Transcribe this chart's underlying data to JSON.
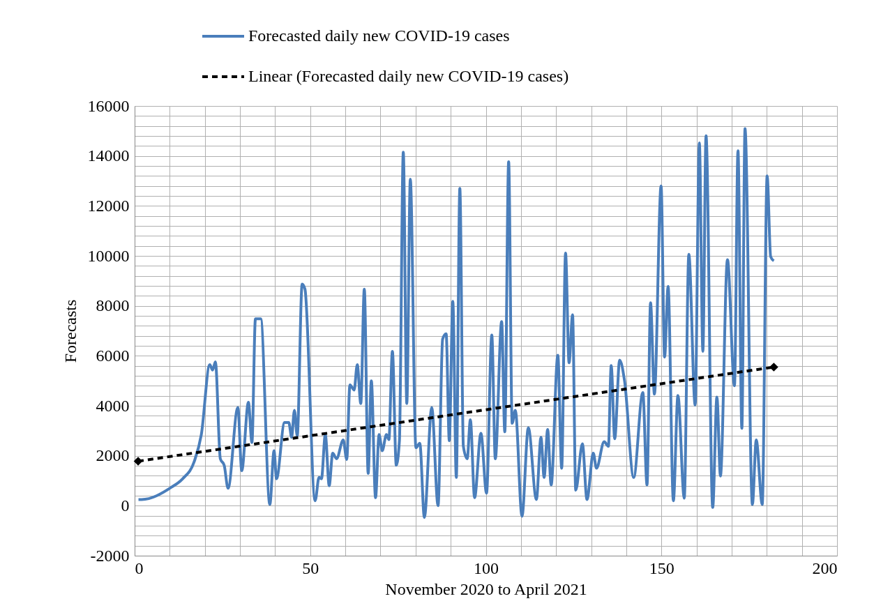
{
  "chart_data": {
    "type": "line",
    "xlabel": "November 2020 to April 2021",
    "ylabel": "Forecasts",
    "legend": "top",
    "grid": true,
    "xlim": [
      0,
      200
    ],
    "ylim": [
      -2000,
      16000
    ],
    "xticks": [
      0,
      {
        "value": 10,
        "label": null
      },
      {
        "value": 20,
        "label": null
      },
      {
        "value": 30,
        "label": null
      },
      {
        "value": 40,
        "label": null
      },
      50,
      {
        "value": 60,
        "label": null
      },
      {
        "value": 70,
        "label": null
      },
      {
        "value": 80,
        "label": null
      },
      {
        "value": 90,
        "label": null
      },
      100,
      {
        "value": 110,
        "label": null
      },
      {
        "value": 120,
        "label": null
      },
      {
        "value": 130,
        "label": null
      },
      {
        "value": 140,
        "label": null
      },
      150,
      {
        "value": 160,
        "label": null
      },
      {
        "value": 170,
        "label": null
      },
      {
        "value": 180,
        "label": null
      },
      {
        "value": 190,
        "label": null
      },
      200
    ],
    "yticks": [
      -2000,
      {
        "value": -1600,
        "label": null
      },
      {
        "value": -1200,
        "label": null
      },
      {
        "value": -800,
        "label": null
      },
      {
        "value": -400,
        "label": null
      },
      0,
      {
        "value": 400,
        "label": null
      },
      {
        "value": 800,
        "label": null
      },
      {
        "value": 1200,
        "label": null
      },
      {
        "value": 1600,
        "label": null
      },
      2000,
      {
        "value": 2400,
        "label": null
      },
      {
        "value": 2800,
        "label": null
      },
      {
        "value": 3200,
        "label": null
      },
      {
        "value": 3600,
        "label": null
      },
      4000,
      {
        "value": 4400,
        "label": null
      },
      {
        "value": 4800,
        "label": null
      },
      {
        "value": 5200,
        "label": null
      },
      {
        "value": 5600,
        "label": null
      },
      6000,
      {
        "value": 6400,
        "label": null
      },
      {
        "value": 6800,
        "label": null
      },
      {
        "value": 7200,
        "label": null
      },
      {
        "value": 7600,
        "label": null
      },
      8000,
      {
        "value": 8400,
        "label": null
      },
      {
        "value": 8800,
        "label": null
      },
      {
        "value": 9200,
        "label": null
      },
      {
        "value": 9600,
        "label": null
      },
      10000,
      {
        "value": 10400,
        "label": null
      },
      {
        "value": 10800,
        "label": null
      },
      {
        "value": 11200,
        "label": null
      },
      {
        "value": 11600,
        "label": null
      },
      12000,
      {
        "value": 12400,
        "label": null
      },
      {
        "value": 12800,
        "label": null
      },
      {
        "value": 13200,
        "label": null
      },
      {
        "value": 13600,
        "label": null
      },
      14000,
      {
        "value": 14400,
        "label": null
      },
      {
        "value": 14800,
        "label": null
      },
      {
        "value": 15200,
        "label": null
      },
      {
        "value": 15600,
        "label": null
      },
      16000
    ],
    "series": [
      {
        "name": "Forecasted daily new COVID-19 cases",
        "type": "line",
        "color": "#4a7ebb",
        "line_style": "solid",
        "x": [
          1.1,
          2,
          10.6,
          13.7,
          17,
          19,
          21.4,
          22.2,
          23,
          24.4,
          25.5,
          26.6,
          29.4,
          30.5,
          32.4,
          33.4,
          34.4,
          35.9,
          38.5,
          39.7,
          40.4,
          42.7,
          43.9,
          44.7,
          45.5,
          46.3,
          47.7,
          48.5,
          51.4,
          52.5,
          53.2,
          54.3,
          55.4,
          56.4,
          57.5,
          59.4,
          60.4,
          61.3,
          62.5,
          63.4,
          64.4,
          65.4,
          66.5,
          67.4,
          68.6,
          69.6,
          70.5,
          71.7,
          72.4,
          73.4,
          74.5,
          75.4,
          76.5,
          77.5,
          78.5,
          80.1,
          81.2,
          82.5,
          84.6,
          86.4,
          87.7,
          88.7,
          89.6,
          90.6,
          91.6,
          92.6,
          93.6,
          94.7,
          95.6,
          96.8,
          98.6,
          100.2,
          101.7,
          102.7,
          104.5,
          105.4,
          106.5,
          107.5,
          108.4,
          110.3,
          112.1,
          114.4,
          115.7,
          116.6,
          117.6,
          118.6,
          120.5,
          121.6,
          122.7,
          123.7,
          124.7,
          125.6,
          127.5,
          128.8,
          130.6,
          131.5,
          133.7,
          134.9,
          135.7,
          136.7,
          138.1,
          139.5,
          142.1,
          144.7,
          145.9,
          146.9,
          148,
          149.9,
          150.9,
          151.9,
          153.4,
          154.7,
          156.5,
          157.8,
          159.6,
          160.8,
          161.8,
          162.7,
          164.6,
          165.8,
          166.8,
          168.8,
          170.8,
          171.8,
          172.9,
          173.8,
          175.9,
          177,
          178.7,
          180.1,
          181.1,
          182
        ],
        "values": [
          250,
          250,
          750,
          1080,
          1780,
          2850,
          5650,
          5430,
          5760,
          1880,
          1620,
          700,
          3930,
          1400,
          4140,
          2530,
          7480,
          7480,
          50,
          2200,
          1080,
          3330,
          3330,
          2740,
          3820,
          2800,
          8870,
          8670,
          200,
          1130,
          1080,
          2850,
          800,
          2100,
          1880,
          2630,
          1850,
          4840,
          4630,
          5650,
          4090,
          8670,
          1290,
          5000,
          320,
          2850,
          2200,
          2850,
          2650,
          6180,
          1620,
          2600,
          14150,
          4090,
          13070,
          2320,
          2500,
          -470,
          3930,
          0,
          6670,
          6880,
          2600,
          8180,
          1130,
          12700,
          2380,
          1880,
          3440,
          320,
          2900,
          500,
          6830,
          1880,
          7370,
          2960,
          13770,
          3300,
          3820,
          -420,
          3120,
          250,
          2740,
          1130,
          3050,
          830,
          6020,
          1500,
          10110,
          5720,
          7640,
          620,
          2480,
          250,
          2100,
          1500,
          2560,
          2380,
          5610,
          2680,
          5830,
          5000,
          1130,
          4530,
          830,
          8120,
          4470,
          12800,
          5950,
          8780,
          200,
          4410,
          300,
          10060,
          4030,
          14520,
          6180,
          14810,
          -70,
          4350,
          1190,
          9850,
          4800,
          14210,
          3100,
          15090,
          50,
          2630,
          50,
          13200,
          9970,
          9800
        ]
      },
      {
        "name": "Linear (Forecasted daily new COVID-19 cases)",
        "type": "line",
        "color": "#000000",
        "line_style": "dashed",
        "marker": "diamond",
        "x": [
          1,
          182
        ],
        "values": [
          1780,
          5550
        ]
      }
    ]
  }
}
